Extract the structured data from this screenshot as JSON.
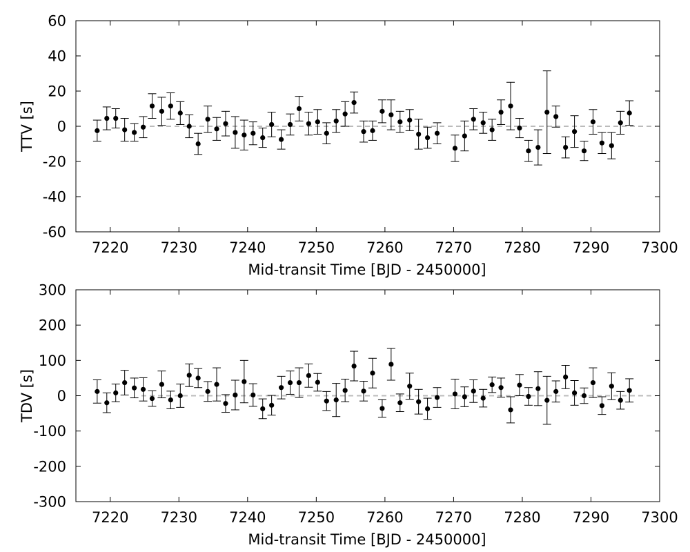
{
  "chart_data": [
    {
      "type": "scatter",
      "xlabel": "Mid-transit Time [BJD - 2450000]",
      "ylabel": "TTV [s]",
      "xlim": [
        7215,
        7300
      ],
      "ylim": [
        -60,
        60
      ],
      "x_ticks": [
        7220,
        7230,
        7240,
        7250,
        7260,
        7270,
        7280,
        7290,
        7300
      ],
      "y_ticks": [
        -60,
        -40,
        -20,
        0,
        20,
        40,
        60
      ],
      "tick_labels_x": [
        "7220",
        "7230",
        "7240",
        "7250",
        "7260",
        "7270",
        "7280",
        "7290",
        "7300"
      ],
      "tick_labels_y": [
        "-60",
        "-40",
        "-20",
        "0",
        "20",
        "40",
        "60"
      ],
      "reference_line": 0,
      "grid": false,
      "points": [
        {
          "x": 7218.1,
          "y": -2.5,
          "err": 6
        },
        {
          "x": 7219.5,
          "y": 4.5,
          "err": 6.5
        },
        {
          "x": 7220.8,
          "y": 4.5,
          "err": 5.5
        },
        {
          "x": 7222.1,
          "y": -2,
          "err": 6.5
        },
        {
          "x": 7223.5,
          "y": -3.5,
          "err": 5
        },
        {
          "x": 7224.8,
          "y": -0.5,
          "err": 6
        },
        {
          "x": 7226.1,
          "y": 11.5,
          "err": 7
        },
        {
          "x": 7227.5,
          "y": 8.5,
          "err": 8
        },
        {
          "x": 7228.8,
          "y": 11.5,
          "err": 7.5
        },
        {
          "x": 7230.2,
          "y": 7.5,
          "err": 6.5
        },
        {
          "x": 7231.5,
          "y": 0,
          "err": 6.5
        },
        {
          "x": 7232.8,
          "y": -10,
          "err": 6
        },
        {
          "x": 7234.2,
          "y": 4,
          "err": 7.5
        },
        {
          "x": 7235.5,
          "y": -1.5,
          "err": 6.5
        },
        {
          "x": 7236.8,
          "y": 1.5,
          "err": 7
        },
        {
          "x": 7238.2,
          "y": -3.5,
          "err": 9
        },
        {
          "x": 7239.5,
          "y": -5,
          "err": 8.5
        },
        {
          "x": 7240.8,
          "y": -4,
          "err": 6.5
        },
        {
          "x": 7242.2,
          "y": -6.5,
          "err": 5.5
        },
        {
          "x": 7243.5,
          "y": 1,
          "err": 7
        },
        {
          "x": 7244.9,
          "y": -7.5,
          "err": 5.5
        },
        {
          "x": 7246.2,
          "y": 1,
          "err": 6
        },
        {
          "x": 7247.5,
          "y": 10,
          "err": 7
        },
        {
          "x": 7248.9,
          "y": 1.5,
          "err": 6.5
        },
        {
          "x": 7250.2,
          "y": 2.5,
          "err": 7
        },
        {
          "x": 7251.5,
          "y": -4,
          "err": 6
        },
        {
          "x": 7252.9,
          "y": 3,
          "err": 6.5
        },
        {
          "x": 7254.2,
          "y": 7,
          "err": 7
        },
        {
          "x": 7255.5,
          "y": 13.5,
          "err": 6
        },
        {
          "x": 7256.9,
          "y": -3,
          "err": 6
        },
        {
          "x": 7258.2,
          "y": -2.5,
          "err": 5.5
        },
        {
          "x": 7259.6,
          "y": 8.5,
          "err": 6.5
        },
        {
          "x": 7260.9,
          "y": 6.5,
          "err": 8.5
        },
        {
          "x": 7262.2,
          "y": 2.5,
          "err": 6
        },
        {
          "x": 7263.6,
          "y": 3.5,
          "err": 6
        },
        {
          "x": 7264.9,
          "y": -4.5,
          "err": 8.5
        },
        {
          "x": 7266.2,
          "y": -6.5,
          "err": 6
        },
        {
          "x": 7267.6,
          "y": -4,
          "err": 6
        },
        {
          "x": 7270.2,
          "y": -12.5,
          "err": 7.5
        },
        {
          "x": 7271.6,
          "y": -5.5,
          "err": 8.5
        },
        {
          "x": 7272.9,
          "y": 4,
          "err": 6
        },
        {
          "x": 7274.3,
          "y": 2,
          "err": 6
        },
        {
          "x": 7275.6,
          "y": -2,
          "err": 6
        },
        {
          "x": 7276.9,
          "y": 8,
          "err": 7
        },
        {
          "x": 7278.3,
          "y": 11.5,
          "err": 13.5
        },
        {
          "x": 7279.6,
          "y": -1,
          "err": 5.5
        },
        {
          "x": 7280.9,
          "y": -14,
          "err": 6
        },
        {
          "x": 7282.3,
          "y": -12,
          "err": 10
        },
        {
          "x": 7283.6,
          "y": 8,
          "err": 23.5
        },
        {
          "x": 7284.9,
          "y": 5.5,
          "err": 6
        },
        {
          "x": 7286.3,
          "y": -12,
          "err": 6
        },
        {
          "x": 7287.6,
          "y": -3,
          "err": 9
        },
        {
          "x": 7289.0,
          "y": -14,
          "err": 5.5
        },
        {
          "x": 7290.3,
          "y": 2.5,
          "err": 7
        },
        {
          "x": 7291.6,
          "y": -9.5,
          "err": 6
        },
        {
          "x": 7293.0,
          "y": -11,
          "err": 7.5
        },
        {
          "x": 7294.3,
          "y": 2,
          "err": 6.5
        },
        {
          "x": 7295.6,
          "y": 7.5,
          "err": 7
        }
      ]
    },
    {
      "type": "scatter",
      "xlabel": "Mid-transit Time [BJD - 2450000]",
      "ylabel": "TDV [s]",
      "xlim": [
        7215,
        7300
      ],
      "ylim": [
        -300,
        300
      ],
      "x_ticks": [
        7220,
        7230,
        7240,
        7250,
        7260,
        7270,
        7280,
        7290,
        7300
      ],
      "y_ticks": [
        -300,
        -200,
        -100,
        0,
        100,
        200,
        300
      ],
      "tick_labels_x": [
        "7220",
        "7230",
        "7240",
        "7250",
        "7260",
        "7270",
        "7280",
        "7290",
        "7300"
      ],
      "tick_labels_y": [
        "-300",
        "-200",
        "-100",
        "0",
        "100",
        "200",
        "300"
      ],
      "reference_line": 0,
      "grid": false,
      "points": [
        {
          "x": 7218.1,
          "y": 12,
          "err": 33
        },
        {
          "x": 7219.5,
          "y": -20,
          "err": 28
        },
        {
          "x": 7220.8,
          "y": 8,
          "err": 25
        },
        {
          "x": 7222.1,
          "y": 37,
          "err": 35
        },
        {
          "x": 7223.5,
          "y": 22,
          "err": 28
        },
        {
          "x": 7224.8,
          "y": 18,
          "err": 33
        },
        {
          "x": 7226.1,
          "y": -8,
          "err": 22
        },
        {
          "x": 7227.5,
          "y": 32,
          "err": 38
        },
        {
          "x": 7228.8,
          "y": -12,
          "err": 25
        },
        {
          "x": 7230.2,
          "y": 0,
          "err": 33
        },
        {
          "x": 7231.5,
          "y": 58,
          "err": 32
        },
        {
          "x": 7232.8,
          "y": 50,
          "err": 27
        },
        {
          "x": 7234.2,
          "y": 12,
          "err": 28
        },
        {
          "x": 7235.5,
          "y": 32,
          "err": 47
        },
        {
          "x": 7236.8,
          "y": -22,
          "err": 25
        },
        {
          "x": 7238.2,
          "y": 2,
          "err": 42
        },
        {
          "x": 7239.5,
          "y": 40,
          "err": 60
        },
        {
          "x": 7240.8,
          "y": 2,
          "err": 32
        },
        {
          "x": 7242.2,
          "y": -37,
          "err": 28
        },
        {
          "x": 7243.5,
          "y": -27,
          "err": 28
        },
        {
          "x": 7244.9,
          "y": 23,
          "err": 32
        },
        {
          "x": 7246.2,
          "y": 37,
          "err": 33
        },
        {
          "x": 7247.5,
          "y": 37,
          "err": 42
        },
        {
          "x": 7248.9,
          "y": 57,
          "err": 33
        },
        {
          "x": 7250.2,
          "y": 38,
          "err": 25
        },
        {
          "x": 7251.5,
          "y": -15,
          "err": 27
        },
        {
          "x": 7252.9,
          "y": -12,
          "err": 47
        },
        {
          "x": 7254.2,
          "y": 15,
          "err": 32
        },
        {
          "x": 7255.5,
          "y": 84,
          "err": 42
        },
        {
          "x": 7256.9,
          "y": 13,
          "err": 28
        },
        {
          "x": 7258.2,
          "y": 64,
          "err": 42
        },
        {
          "x": 7259.6,
          "y": -36,
          "err": 25
        },
        {
          "x": 7260.9,
          "y": 89,
          "err": 45
        },
        {
          "x": 7262.2,
          "y": -20,
          "err": 25
        },
        {
          "x": 7263.6,
          "y": 27,
          "err": 37
        },
        {
          "x": 7264.9,
          "y": -17,
          "err": 35
        },
        {
          "x": 7266.2,
          "y": -37,
          "err": 30
        },
        {
          "x": 7267.6,
          "y": -5,
          "err": 28
        },
        {
          "x": 7270.2,
          "y": 5,
          "err": 42
        },
        {
          "x": 7271.6,
          "y": -3,
          "err": 28
        },
        {
          "x": 7272.9,
          "y": 13,
          "err": 32
        },
        {
          "x": 7274.3,
          "y": -7,
          "err": 25
        },
        {
          "x": 7275.6,
          "y": 31,
          "err": 22
        },
        {
          "x": 7276.9,
          "y": 23,
          "err": 27
        },
        {
          "x": 7278.3,
          "y": -40,
          "err": 37
        },
        {
          "x": 7279.6,
          "y": 30,
          "err": 30
        },
        {
          "x": 7280.9,
          "y": -2,
          "err": 25
        },
        {
          "x": 7282.3,
          "y": 20,
          "err": 48
        },
        {
          "x": 7283.6,
          "y": -13,
          "err": 68
        },
        {
          "x": 7284.9,
          "y": 12,
          "err": 30
        },
        {
          "x": 7286.3,
          "y": 53,
          "err": 33
        },
        {
          "x": 7287.6,
          "y": 8,
          "err": 35
        },
        {
          "x": 7289.0,
          "y": 0,
          "err": 22
        },
        {
          "x": 7290.3,
          "y": 37,
          "err": 42
        },
        {
          "x": 7291.6,
          "y": -28,
          "err": 25
        },
        {
          "x": 7293.0,
          "y": 27,
          "err": 38
        },
        {
          "x": 7294.3,
          "y": -13,
          "err": 25
        },
        {
          "x": 7295.6,
          "y": 15,
          "err": 33
        }
      ]
    }
  ],
  "colors": {
    "points": "#000000",
    "error_bars": "#000000",
    "reference_line": "#bbbbbb",
    "frame": "#000000"
  }
}
